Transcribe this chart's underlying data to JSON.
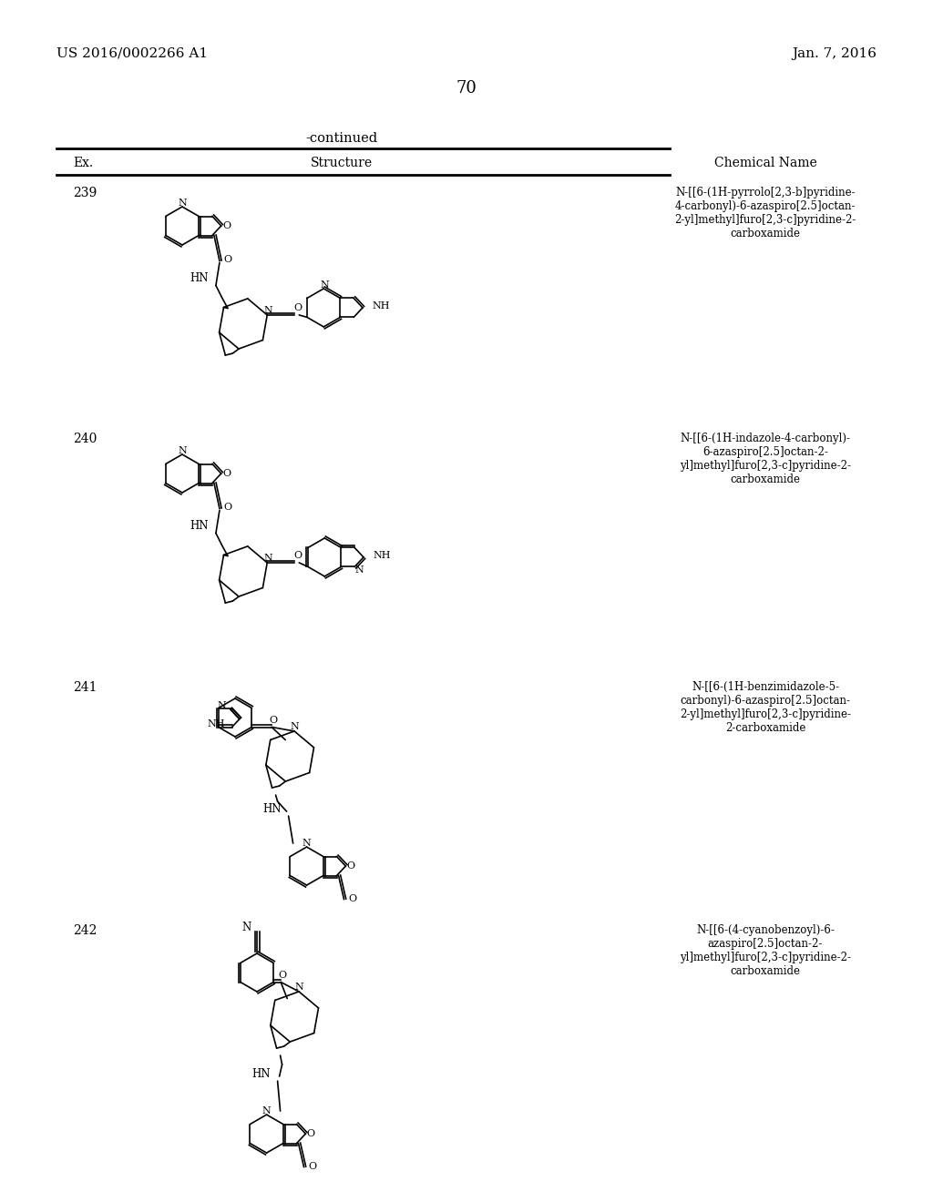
{
  "header_left": "US 2016/0002266 A1",
  "header_right": "Jan. 7, 2016",
  "page_number": "70",
  "continued": "-continued",
  "col_headers": [
    "Ex.",
    "Structure",
    "Chemical Name"
  ],
  "entries": [
    {
      "num": "239",
      "name": "N-[[6-(1H-pyrrolo[2,3-b]pyridine-\n4-carbonyl)-6-azaspiro[2.5]octan-\n2-yl]methyl]furo[2,3-c]pyridine-2-\ncarboxamide"
    },
    {
      "num": "240",
      "name": "N-[[6-(1H-indazole-4-carbonyl)-\n6-azaspiro[2.5]octan-2-\nyl]methyl]furo[2,3-c]pyridine-2-\ncarboxamide"
    },
    {
      "num": "241",
      "name": "N-[[6-(1H-benzimidazole-5-\ncarbonyl)-6-azaspiro[2.5]octan-\n2-yl]methyl]furo[2,3-c]pyridine-\n2-carboxamide"
    },
    {
      "num": "242",
      "name": "N-[[6-(4-cyanobenzoyl)-6-\nazaspiro[2.5]octan-2-\nyl]methyl]furo[2,3-c]pyridine-2-\ncarboxamide"
    }
  ],
  "bg_color": "#ffffff"
}
